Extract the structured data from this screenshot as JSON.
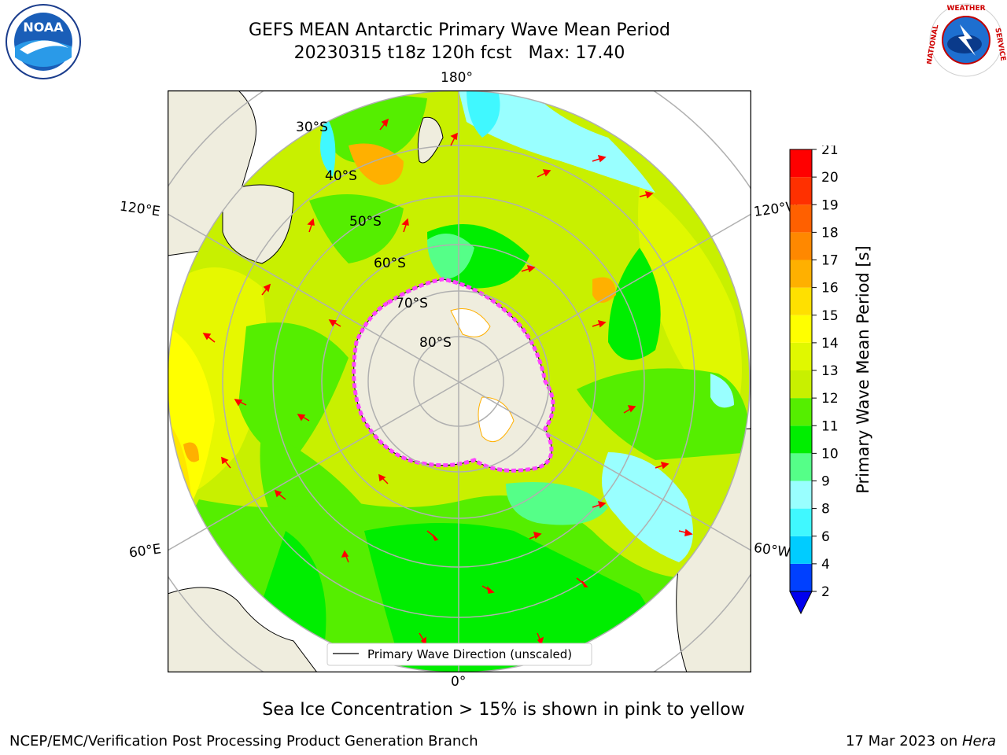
{
  "title": {
    "line1": "GEFS MEAN Antarctic Primary Wave Mean Period",
    "line2": "20230315 t18z 120h fcst   Max: 17.40"
  },
  "note": "Sea Ice Concentration > 15% is shown in pink to yellow",
  "footer": {
    "credit": "NCEP/EMC/Verification Post Processing Product Generation Branch",
    "date": "17 Mar 2023 on ",
    "machine": "Hera"
  },
  "logos": {
    "left": "noara-logo",
    "right": "nws-logo",
    "right_text": "NATIONAL WEATHER SERVICE"
  },
  "map": {
    "projection": "south-polar-stereographic",
    "lon_labels": [
      "180°",
      "120°E",
      "120°W",
      "60°E",
      "60°W",
      "0°"
    ],
    "lat_labels": [
      "30°S",
      "40°S",
      "50°S",
      "60°S",
      "70°S",
      "80°S"
    ],
    "legend": "Primary Wave Direction (unscaled)",
    "colors": {
      "land": "#efedde",
      "ocean_base": "#c8f000",
      "ice": "#ff44ff",
      "arrow": "#ff0000",
      "grid": "#b0b0b0"
    }
  },
  "colorbar": {
    "label": "Primary Wave Mean Period [s]",
    "ticks": [
      "2",
      "4",
      "6",
      "8",
      "9",
      "10",
      "11",
      "12",
      "13",
      "14",
      "15",
      "16",
      "17",
      "18",
      "19",
      "20",
      "21"
    ],
    "colors": [
      "#0040ff",
      "#00ccff",
      "#40f8ff",
      "#99ffff",
      "#55ff88",
      "#00ee00",
      "#55ee00",
      "#c8f000",
      "#e0f800",
      "#ffff00",
      "#ffe000",
      "#ffb000",
      "#ff8800",
      "#ff6000",
      "#ff3000",
      "#ff0000"
    ],
    "extend_color": "#0000ee"
  }
}
